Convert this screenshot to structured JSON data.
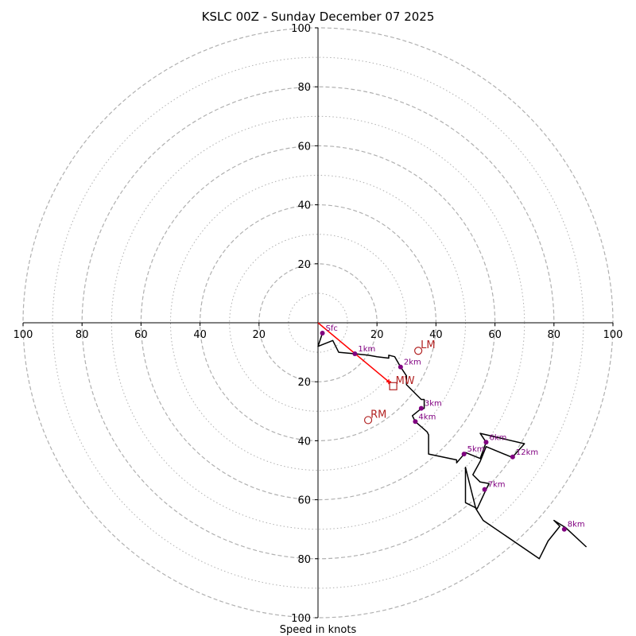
{
  "chart_data": {
    "type": "hodograph",
    "title": "KSLC 00Z - Sunday December 07 2025",
    "xlabel": "Speed in knots",
    "units": "knots",
    "range": [
      -100,
      100
    ],
    "rings_major": [
      20,
      40,
      60,
      80,
      100
    ],
    "rings_minor": [
      10,
      30,
      50,
      70,
      90
    ],
    "x_ticks": [
      "100",
      "80",
      "60",
      "40",
      "20",
      "20",
      "40",
      "60",
      "80",
      "100"
    ],
    "x_tick_values": [
      -100,
      -80,
      -60,
      -40,
      -20,
      20,
      40,
      60,
      80,
      100
    ],
    "y_ticks": [
      "100",
      "80",
      "60",
      "40",
      "20",
      "20",
      "40",
      "60",
      "80",
      "100"
    ],
    "y_tick_values": [
      100,
      80,
      60,
      40,
      20,
      -20,
      -40,
      -60,
      -80,
      -100
    ],
    "trace": [
      [
        1.5,
        -3.5
      ],
      [
        0,
        -8
      ],
      [
        5,
        -6
      ],
      [
        7,
        -10
      ],
      [
        12.5,
        -10.5
      ],
      [
        17,
        -11
      ],
      [
        20,
        -11.5
      ],
      [
        24,
        -12
      ],
      [
        24,
        -11
      ],
      [
        26,
        -11.5
      ],
      [
        28,
        -15
      ],
      [
        30,
        -18
      ],
      [
        30,
        -21
      ],
      [
        31,
        -22
      ],
      [
        35,
        -26
      ],
      [
        36,
        -26
      ],
      [
        36,
        -29
      ],
      [
        34.5,
        -29.5
      ],
      [
        32,
        -31.5
      ],
      [
        33,
        -33.5
      ],
      [
        37,
        -37
      ],
      [
        37.5,
        -38
      ],
      [
        37.5,
        -44.5
      ],
      [
        47,
        -46.5
      ],
      [
        47,
        -47.5
      ],
      [
        50,
        -44
      ],
      [
        55,
        -46
      ],
      [
        57,
        -40.5
      ],
      [
        55,
        -37.5
      ],
      [
        70,
        -41
      ],
      [
        66,
        -45.5
      ],
      [
        65.5,
        -45.5
      ],
      [
        57,
        -42
      ],
      [
        55,
        -47
      ],
      [
        52.5,
        -51.5
      ],
      [
        55,
        -54
      ],
      [
        58,
        -54.5
      ],
      [
        57,
        -56.5
      ],
      [
        54,
        -63
      ],
      [
        50,
        -61
      ],
      [
        50,
        -49
      ],
      [
        53.5,
        -63
      ],
      [
        56,
        -67
      ],
      [
        75,
        -80
      ],
      [
        78,
        -74
      ],
      [
        82,
        -69
      ],
      [
        80,
        -67
      ],
      [
        84,
        -69.5
      ],
      [
        91,
        -76
      ]
    ],
    "height_markers": [
      {
        "label": "Sfc",
        "u": 1.5,
        "v": -3.5
      },
      {
        "label": "1km",
        "u": 12.5,
        "v": -10.5
      },
      {
        "label": "2km",
        "u": 28,
        "v": -15
      },
      {
        "label": "3km",
        "u": 35,
        "v": -29
      },
      {
        "label": "4km",
        "u": 33,
        "v": -33.5
      },
      {
        "label": "5km",
        "u": 49.5,
        "v": -44.5
      },
      {
        "label": "6km",
        "u": 57,
        "v": -40.5
      },
      {
        "label": "7km",
        "u": 56.5,
        "v": -56.5
      },
      {
        "label": "8km",
        "u": 83.5,
        "v": -70
      },
      {
        "label": "12km",
        "u": 66,
        "v": -45.5
      }
    ],
    "shear_vector": {
      "from": [
        0,
        0
      ],
      "to": [
        24,
        -20
      ]
    },
    "storm_motion": [
      {
        "label": "LM",
        "u": 34,
        "v": -9.5,
        "marker": "circle"
      },
      {
        "label": "RM",
        "u": 17,
        "v": -33,
        "marker": "circle"
      },
      {
        "label": "MW",
        "u": 25.5,
        "v": -21.5,
        "marker": "square"
      }
    ],
    "colors": {
      "trace": "#000000",
      "markers": "#800080",
      "storm_motion": "#b22222",
      "shear": "#ff0000",
      "rings": "#b0b0b0",
      "axes": "#000000"
    }
  }
}
